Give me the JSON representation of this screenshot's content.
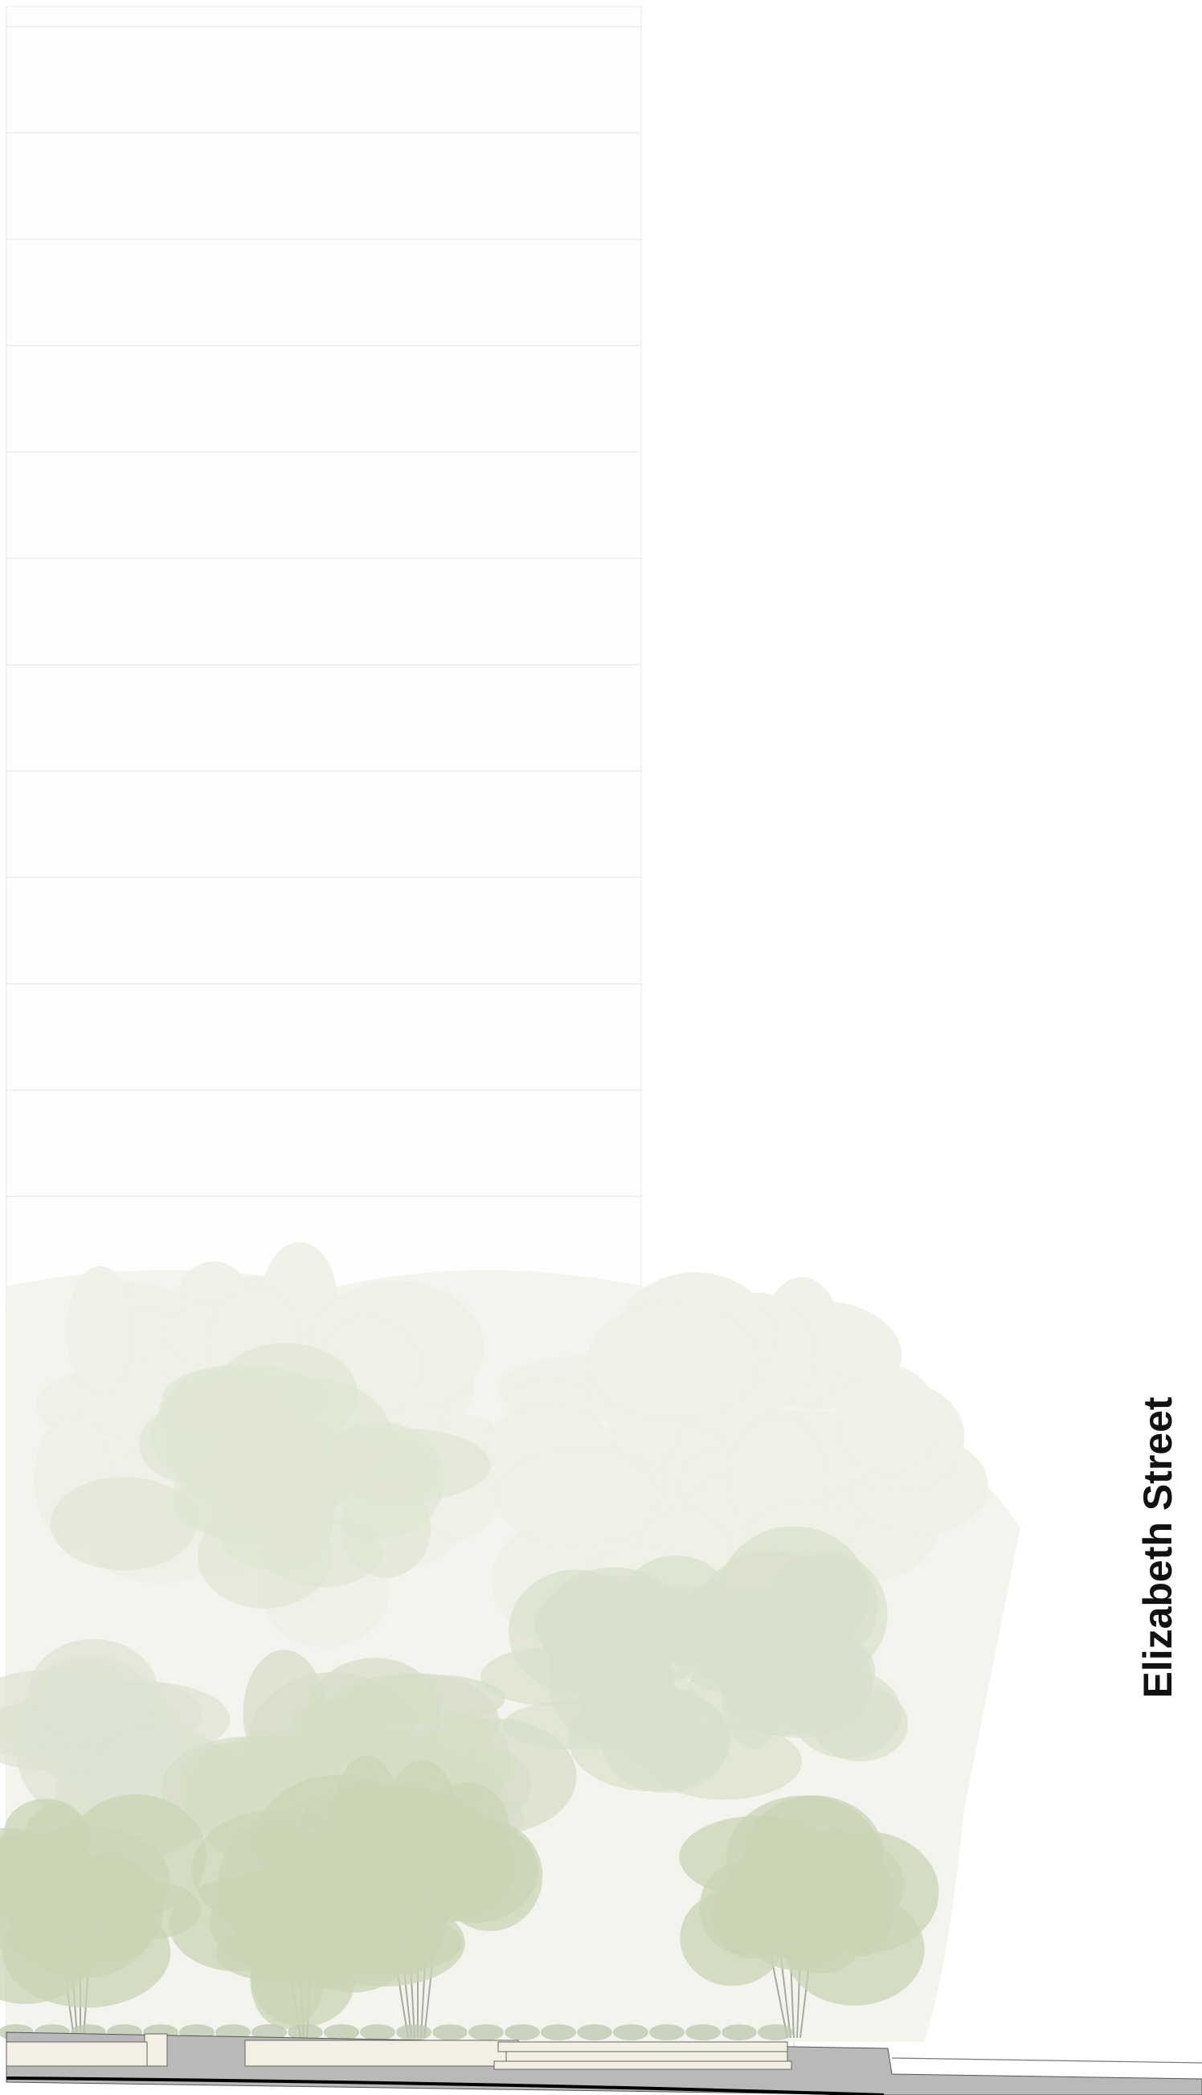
{
  "street_label": "Elizabeth Street"
}
